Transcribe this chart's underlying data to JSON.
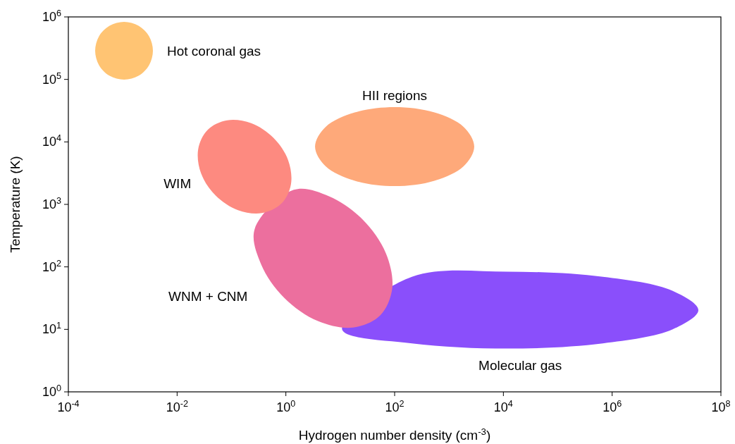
{
  "chart_data": {
    "type": "area",
    "xlabel": "Hydrogen number density (cm$^{-3}$)",
    "ylabel": "Temperature (K)",
    "log": "xy",
    "grid": false,
    "xlim": [
      0.0001,
      100000000.0
    ],
    "ylim": [
      1,
      1000000.0
    ],
    "xticks": [
      {
        "value": 0.0001,
        "label": "10$^{-4}$"
      },
      {
        "value": 0.01,
        "label": "10$^{-2}$"
      },
      {
        "value": 1,
        "label": "10$^{0}$"
      },
      {
        "value": 100,
        "label": "10$^{2}$"
      },
      {
        "value": 10000.0,
        "label": "10$^{4}$"
      },
      {
        "value": 1000000.0,
        "label": "10$^{6}$"
      },
      {
        "value": 100000000.0,
        "label": "10$^{8}$"
      }
    ],
    "yticks": [
      {
        "value": 1,
        "label": "10$^{0}$"
      },
      {
        "value": 10,
        "label": "10$^{1}$"
      },
      {
        "value": 100,
        "label": "10$^{2}$"
      },
      {
        "value": 1000,
        "label": "10$^{3}$"
      },
      {
        "value": 10000.0,
        "label": "10$^{4}$"
      },
      {
        "value": 100000.0,
        "label": "10$^{5}$"
      },
      {
        "value": 1000000.0,
        "label": "10$^{6}$"
      }
    ],
    "series": [
      {
        "name": "Hot coronal gas",
        "color": "#ffc473",
        "x": [
          0.00359,
          0.00305,
          0.00195,
          0.00106,
          0.000573,
          0.000366,
          0.000311,
          0.000366,
          0.000573,
          0.00106,
          0.00195,
          0.00305
        ],
        "values": [
          287000.0,
          489000.0,
          721000.0,
          832000.0,
          721000.0,
          489000.0,
          287000.0,
          169000.0,
          114000.0,
          99000.0,
          114000.0,
          169000.0
        ]
      },
      {
        "name": "HII regions",
        "color": "#fea97a",
        "x": [
          2910,
          1850,
          540,
          100,
          18.5,
          5.4,
          3.44,
          5.4,
          18.5,
          100,
          540,
          1850
        ],
        "values": [
          8410,
          17400,
          29600,
          36100,
          29600,
          17400,
          8410,
          4060,
          2390,
          1960,
          2390,
          4060
        ]
      },
      {
        "name": "Molecular gas",
        "color": "#8a4ffb",
        "x": [
          38500000.0,
          13000000.0,
          675000.0,
          11800.0,
          208,
          10.8,
          208,
          11800.0,
          675000.0,
          13000000.0
        ],
        "values": [
          20.3,
          41.3,
          69.3,
          83.8,
          69.3,
          10,
          5.96,
          4.93,
          5.96,
          10
        ]
      },
      {
        "name": "WNM + CNM",
        "color": "#ec6f9e",
        "x": [
          54.3,
          90.4,
          68.9,
          25.8,
          6.21,
          1.4,
          0.267,
          0.35,
          0.936,
          3.88,
          17.2
        ],
        "values": [
          16.7,
          45.4,
          166,
          573,
          1350,
          1710,
          403,
          110,
          31.9,
          13.6,
          10.7
        ]
      },
      {
        "name": "WIM",
        "color": "#fd8a80",
        "x": [
          0.828,
          1.24,
          1.1,
          0.59,
          0.23,
          0.083,
          0.0365,
          0.0244,
          0.0275,
          0.0512,
          0.132,
          0.364
        ],
        "values": [
          1030,
          2100,
          5110,
          11600,
          19900,
          22100,
          15600,
          7640,
          3150,
          1380,
          807,
          726
        ]
      }
    ]
  }
}
